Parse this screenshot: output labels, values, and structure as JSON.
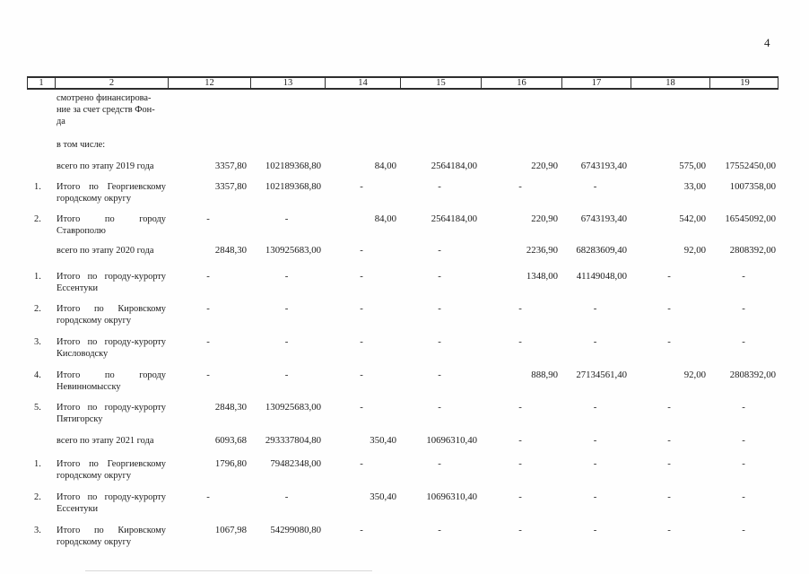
{
  "page": {
    "number": "4"
  },
  "table": {
    "columns": [
      "1",
      "2",
      "12",
      "13",
      "14",
      "15",
      "16",
      "17",
      "18",
      "19"
    ],
    "rows": [
      {
        "num": "",
        "label": "смотрено финансирова-\nние за счет средств Фон-\nда",
        "kind": "continuation",
        "values": [
          "",
          "",
          "",
          "",
          "",
          "",
          "",
          ""
        ]
      },
      {
        "num": "",
        "label": "в том числе:",
        "kind": "intro",
        "values": [
          "",
          "",
          "",
          "",
          "",
          "",
          "",
          ""
        ]
      },
      {
        "num": "",
        "label": "всего по этапу 2019 года",
        "kind": "total",
        "values": [
          "3357,80",
          "102189368,80",
          "84,00",
          "2564184,00",
          "220,90",
          "6743193,40",
          "575,00",
          "17552450,00"
        ]
      },
      {
        "num": "1.",
        "label": "Итого по Георгиевскому городскому округу",
        "kind": "item",
        "values": [
          "3357,80",
          "102189368,80",
          "-",
          "-",
          "-",
          "-",
          "33,00",
          "1007358,00"
        ]
      },
      {
        "num": "2.",
        "label": "Итого по городу Ставрополю",
        "kind": "item",
        "values": [
          "-",
          "-",
          "84,00",
          "2564184,00",
          "220,90",
          "6743193,40",
          "542,00",
          "16545092,00"
        ]
      },
      {
        "num": "",
        "label": "всего по этапу 2020 года",
        "kind": "total",
        "values": [
          "2848,30",
          "130925683,00",
          "-",
          "-",
          "2236,90",
          "68283609,40",
          "92,00",
          "2808392,00"
        ]
      },
      {
        "num": "1.",
        "label": "Итого по городу-курорту Ессентуки",
        "kind": "item",
        "values": [
          "-",
          "-",
          "-",
          "-",
          "1348,00",
          "41149048,00",
          "-",
          "-"
        ]
      },
      {
        "num": "2.",
        "label": "Итого по Кировскому городскому округу",
        "kind": "item",
        "values": [
          "-",
          "-",
          "-",
          "-",
          "-",
          "-",
          "-",
          "-"
        ]
      },
      {
        "num": "3.",
        "label": "Итого по городу-курорту Кисловодску",
        "kind": "item",
        "values": [
          "-",
          "-",
          "-",
          "-",
          "-",
          "-",
          "-",
          "-"
        ]
      },
      {
        "num": "4.",
        "label": "Итого по городу Невинномысску",
        "kind": "item",
        "values": [
          "-",
          "-",
          "-",
          "-",
          "888,90",
          "27134561,40",
          "92,00",
          "2808392,00"
        ]
      },
      {
        "num": "5.",
        "label": "Итого по городу-курорту Пятигорску",
        "kind": "item",
        "values": [
          "2848,30",
          "130925683,00",
          "-",
          "-",
          "-",
          "-",
          "-",
          "-"
        ]
      },
      {
        "num": "",
        "label": "всего по этапу 2021 года",
        "kind": "total",
        "values": [
          "6093,68",
          "293337804,80",
          "350,40",
          "10696310,40",
          "-",
          "-",
          "-",
          "-"
        ]
      },
      {
        "num": "1.",
        "label": "Итого по Георгиевскому городскому округу",
        "kind": "item",
        "values": [
          "1796,80",
          "79482348,00",
          "-",
          "-",
          "-",
          "-",
          "-",
          "-"
        ]
      },
      {
        "num": "2.",
        "label": "Итого по городу-курорту Ессентуки",
        "kind": "item",
        "values": [
          "-",
          "-",
          "350,40",
          "10696310,40",
          "-",
          "-",
          "-",
          "-"
        ]
      },
      {
        "num": "3.",
        "label": "Итого по Кировскому городскому округу",
        "kind": "item",
        "values": [
          "1067,98",
          "54299080,80",
          "-",
          "-",
          "-",
          "-",
          "-",
          "-"
        ]
      }
    ]
  }
}
